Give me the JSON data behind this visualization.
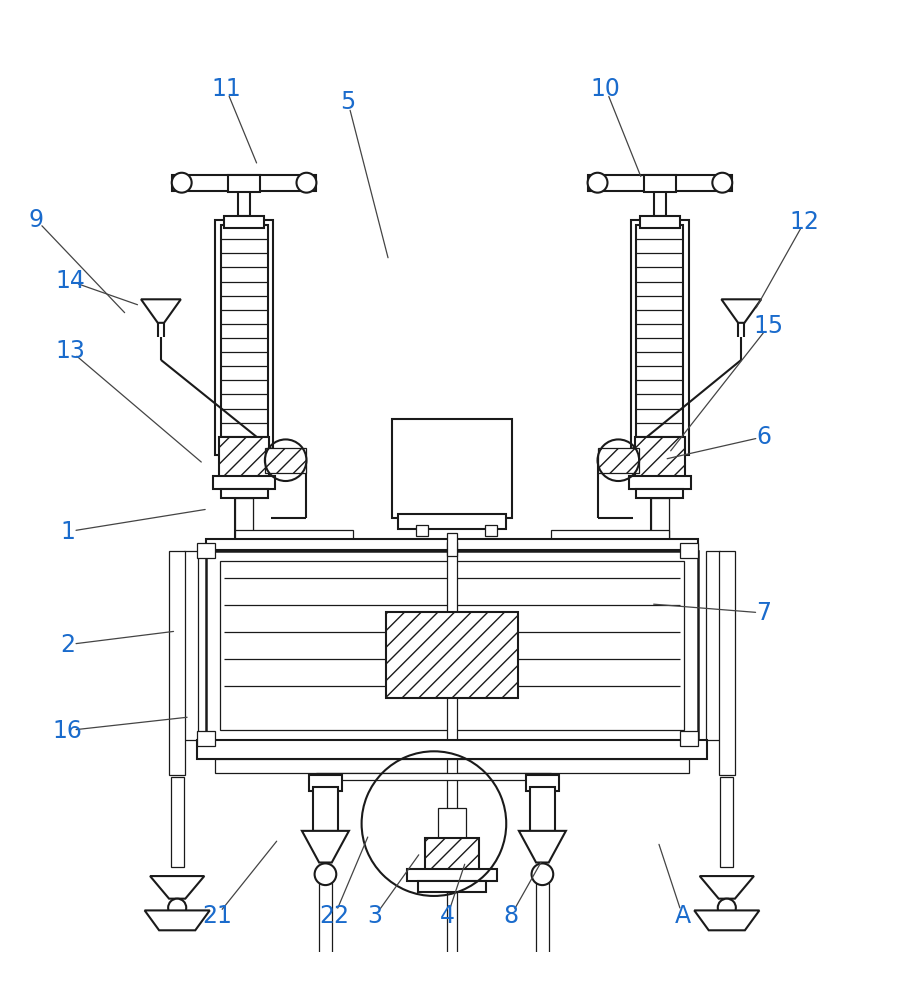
{
  "bg_color": "#ffffff",
  "lc": "#1a1a1a",
  "label_color": "#1a6bcc",
  "label_fontsize": 17,
  "lw": 1.5,
  "lwt": 0.9,
  "labels_info": {
    "1": [
      0.075,
      0.535,
      0.23,
      0.51
    ],
    "2": [
      0.075,
      0.66,
      0.195,
      0.645
    ],
    "3": [
      0.415,
      0.96,
      0.465,
      0.89
    ],
    "4": [
      0.495,
      0.96,
      0.515,
      0.9
    ],
    "5": [
      0.385,
      0.06,
      0.43,
      0.235
    ],
    "6": [
      0.845,
      0.43,
      0.735,
      0.455
    ],
    "7": [
      0.845,
      0.625,
      0.72,
      0.615
    ],
    "8": [
      0.565,
      0.96,
      0.6,
      0.898
    ],
    "9": [
      0.04,
      0.19,
      0.14,
      0.295
    ],
    "10": [
      0.67,
      0.045,
      0.71,
      0.145
    ],
    "11": [
      0.25,
      0.045,
      0.285,
      0.13
    ],
    "12": [
      0.89,
      0.192,
      0.835,
      0.29
    ],
    "13": [
      0.078,
      0.335,
      0.225,
      0.46
    ],
    "14": [
      0.078,
      0.258,
      0.155,
      0.285
    ],
    "15": [
      0.85,
      0.308,
      0.74,
      0.448
    ],
    "16": [
      0.075,
      0.755,
      0.21,
      0.74
    ],
    "21": [
      0.24,
      0.96,
      0.308,
      0.875
    ],
    "22": [
      0.37,
      0.96,
      0.408,
      0.87
    ],
    "A": [
      0.755,
      0.96,
      0.728,
      0.878
    ]
  }
}
